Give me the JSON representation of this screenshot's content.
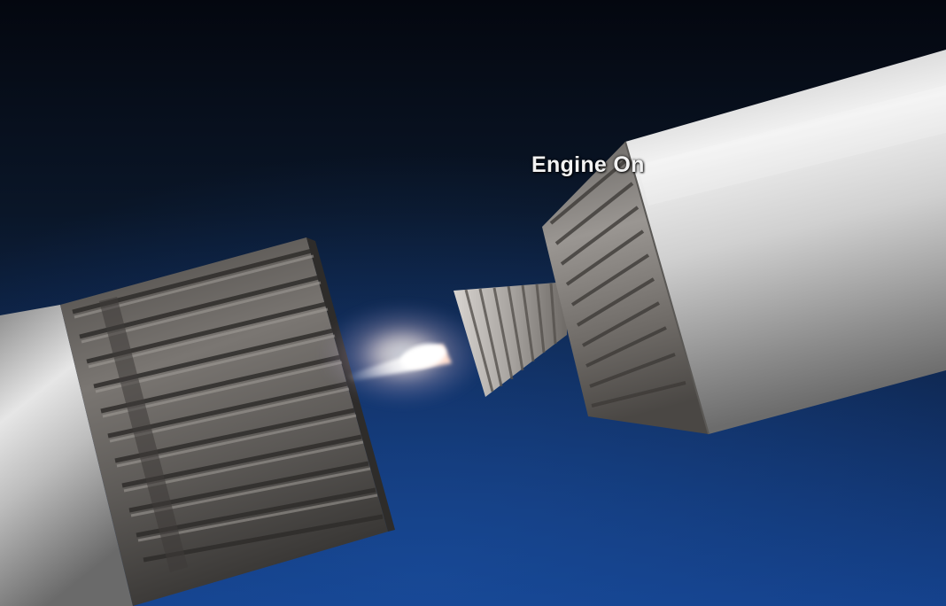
{
  "scene": {
    "caption": "Engine On",
    "subject": "rocket-stage-separation",
    "colors": {
      "sky_top": "#050a14",
      "sky_bottom": "#133a7a",
      "hull_light": "#e8e8e8",
      "hull_dark": "#4a4a4a",
      "ribbed_section": "#6e6b68",
      "engine_flame": "#fff4ee"
    }
  }
}
